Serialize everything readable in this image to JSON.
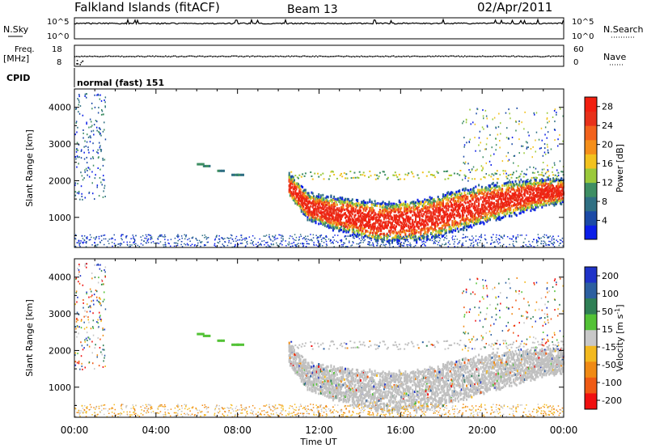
{
  "header": {
    "station": "Falkland Islands (fitACF)",
    "beam": "Beam 13",
    "date": "02/Apr/2011"
  },
  "strip_nsky": {
    "left_label": "N.Sky",
    "right_label": "N.Search",
    "left_ticks": [
      "10^5",
      "10^0"
    ],
    "right_ticks": [
      "10^5",
      "10^0"
    ]
  },
  "strip_freq": {
    "left_label_1": "Freq.",
    "left_label_2": "[MHz]",
    "right_label": "Nave",
    "left_ticks": [
      "18",
      "8"
    ],
    "right_ticks": [
      "60",
      "0"
    ]
  },
  "strip_cpid": {
    "label": "CPID",
    "value": "normal (fast) 151"
  },
  "x_axis": {
    "title": "Time UT",
    "tick_labels": [
      "00:00",
      "04:00",
      "08:00",
      "12:00",
      "16:00",
      "20:00",
      "00:00"
    ]
  },
  "power_panel": {
    "ylabel": "Slant Range [km]",
    "y_ticks": [
      "1000",
      "2000",
      "3000",
      "4000"
    ],
    "colorbar_label": "Power [dB]",
    "colorbar_ticks": [
      "4",
      "8",
      "12",
      "16",
      "20",
      "24",
      "28"
    ]
  },
  "velocity_panel": {
    "ylabel": "Slant Range [km]",
    "y_ticks": [
      "1000",
      "2000",
      "3000",
      "4000"
    ],
    "colorbar_label": "Velocity [m s",
    "colorbar_label_sup": "-1",
    "colorbar_label_end": "]",
    "colorbar_ticks": [
      "200",
      "100",
      "50",
      "15",
      "-15",
      "-50",
      "-100",
      "-200"
    ]
  },
  "colors": {
    "power_scale": [
      "#0b1ee8",
      "#1b4aa6",
      "#2f6f83",
      "#3e8e63",
      "#9ac93a",
      "#f2c21e",
      "#f58f1a",
      "#f2621c",
      "#e8311a",
      "#f21f10"
    ],
    "velocity_scale": [
      "#1f33c8",
      "#2c5fa0",
      "#2f7f55",
      "#53c236",
      "#c8c8c8",
      "#f3b91f",
      "#f08a14",
      "#ef5a14",
      "#f01010"
    ],
    "ground_scatter": "#c0c0c0"
  },
  "chart_data": {
    "type": "heatmap",
    "x_range_hours": [
      0,
      24
    ],
    "y_range_km": [
      180,
      4500
    ],
    "power_range_db": [
      0,
      30
    ],
    "velocity_range_ms": [
      -250,
      250
    ],
    "main_echo_band": {
      "time_start_h": 10.5,
      "time_end_h": 24,
      "range_center_km": [
        [
          10.5,
          1900
        ],
        [
          11.5,
          1300
        ],
        [
          13,
          1100
        ],
        [
          15,
          900
        ],
        [
          17,
          950
        ],
        [
          19,
          1250
        ],
        [
          21,
          1500
        ],
        [
          23,
          1700
        ],
        [
          24,
          1750
        ]
      ],
      "typical_power_db": 26
    }
  }
}
